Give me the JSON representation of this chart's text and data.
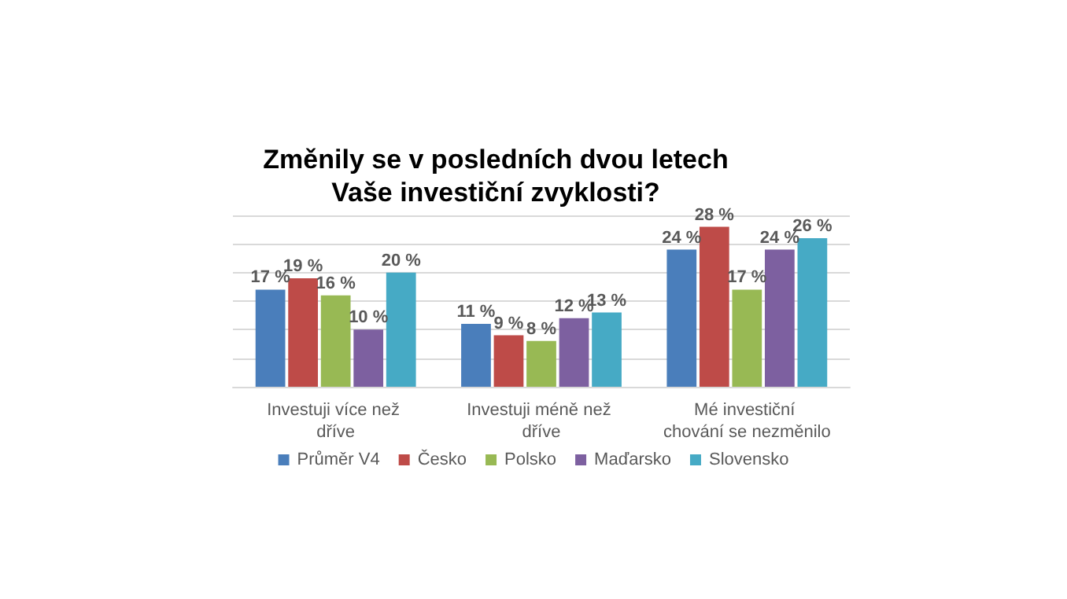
{
  "chart_data": {
    "type": "bar",
    "title": "Změnily se v posledních dvou letech\nVaše investiční zvyklosti?",
    "categories": [
      "Investuji více než dříve",
      "Investuji méně než dříve",
      "Mé investiční chování se nezměnilo"
    ],
    "series": [
      {
        "name": "Průměr V4",
        "color": "#4a7ebb",
        "values": [
          17,
          11,
          24
        ],
        "value_labels": [
          "17 %",
          "11 %",
          "24 %"
        ]
      },
      {
        "name": "Česko",
        "color": "#be4b48",
        "values": [
          19,
          9,
          28
        ],
        "value_labels": [
          "19 %",
          "9 %",
          "28 %"
        ]
      },
      {
        "name": "Polsko",
        "color": "#98b954",
        "values": [
          16,
          8,
          17
        ],
        "value_labels": [
          "16 %",
          "8 %",
          "17 %"
        ]
      },
      {
        "name": "Maďarsko",
        "color": "#7d60a0",
        "values": [
          10,
          12,
          24
        ],
        "value_labels": [
          "10 %",
          "12 %",
          "24 %"
        ]
      },
      {
        "name": "Slovensko",
        "color": "#46aac5",
        "values": [
          20,
          13,
          26
        ],
        "value_labels": [
          "20 %",
          "13 %",
          "26 %"
        ]
      }
    ],
    "ylim": [
      0,
      30
    ],
    "yticks": [
      {
        "value": 0,
        "label": null
      },
      {
        "value": 5,
        "label": null
      },
      {
        "value": 10,
        "label": null
      },
      {
        "value": 15,
        "label": null
      },
      {
        "value": 20,
        "label": null
      },
      {
        "value": 25,
        "label": null
      },
      {
        "value": 30,
        "label": null
      }
    ],
    "tick_labels": "x",
    "grid": "y",
    "legend": "bottom"
  }
}
